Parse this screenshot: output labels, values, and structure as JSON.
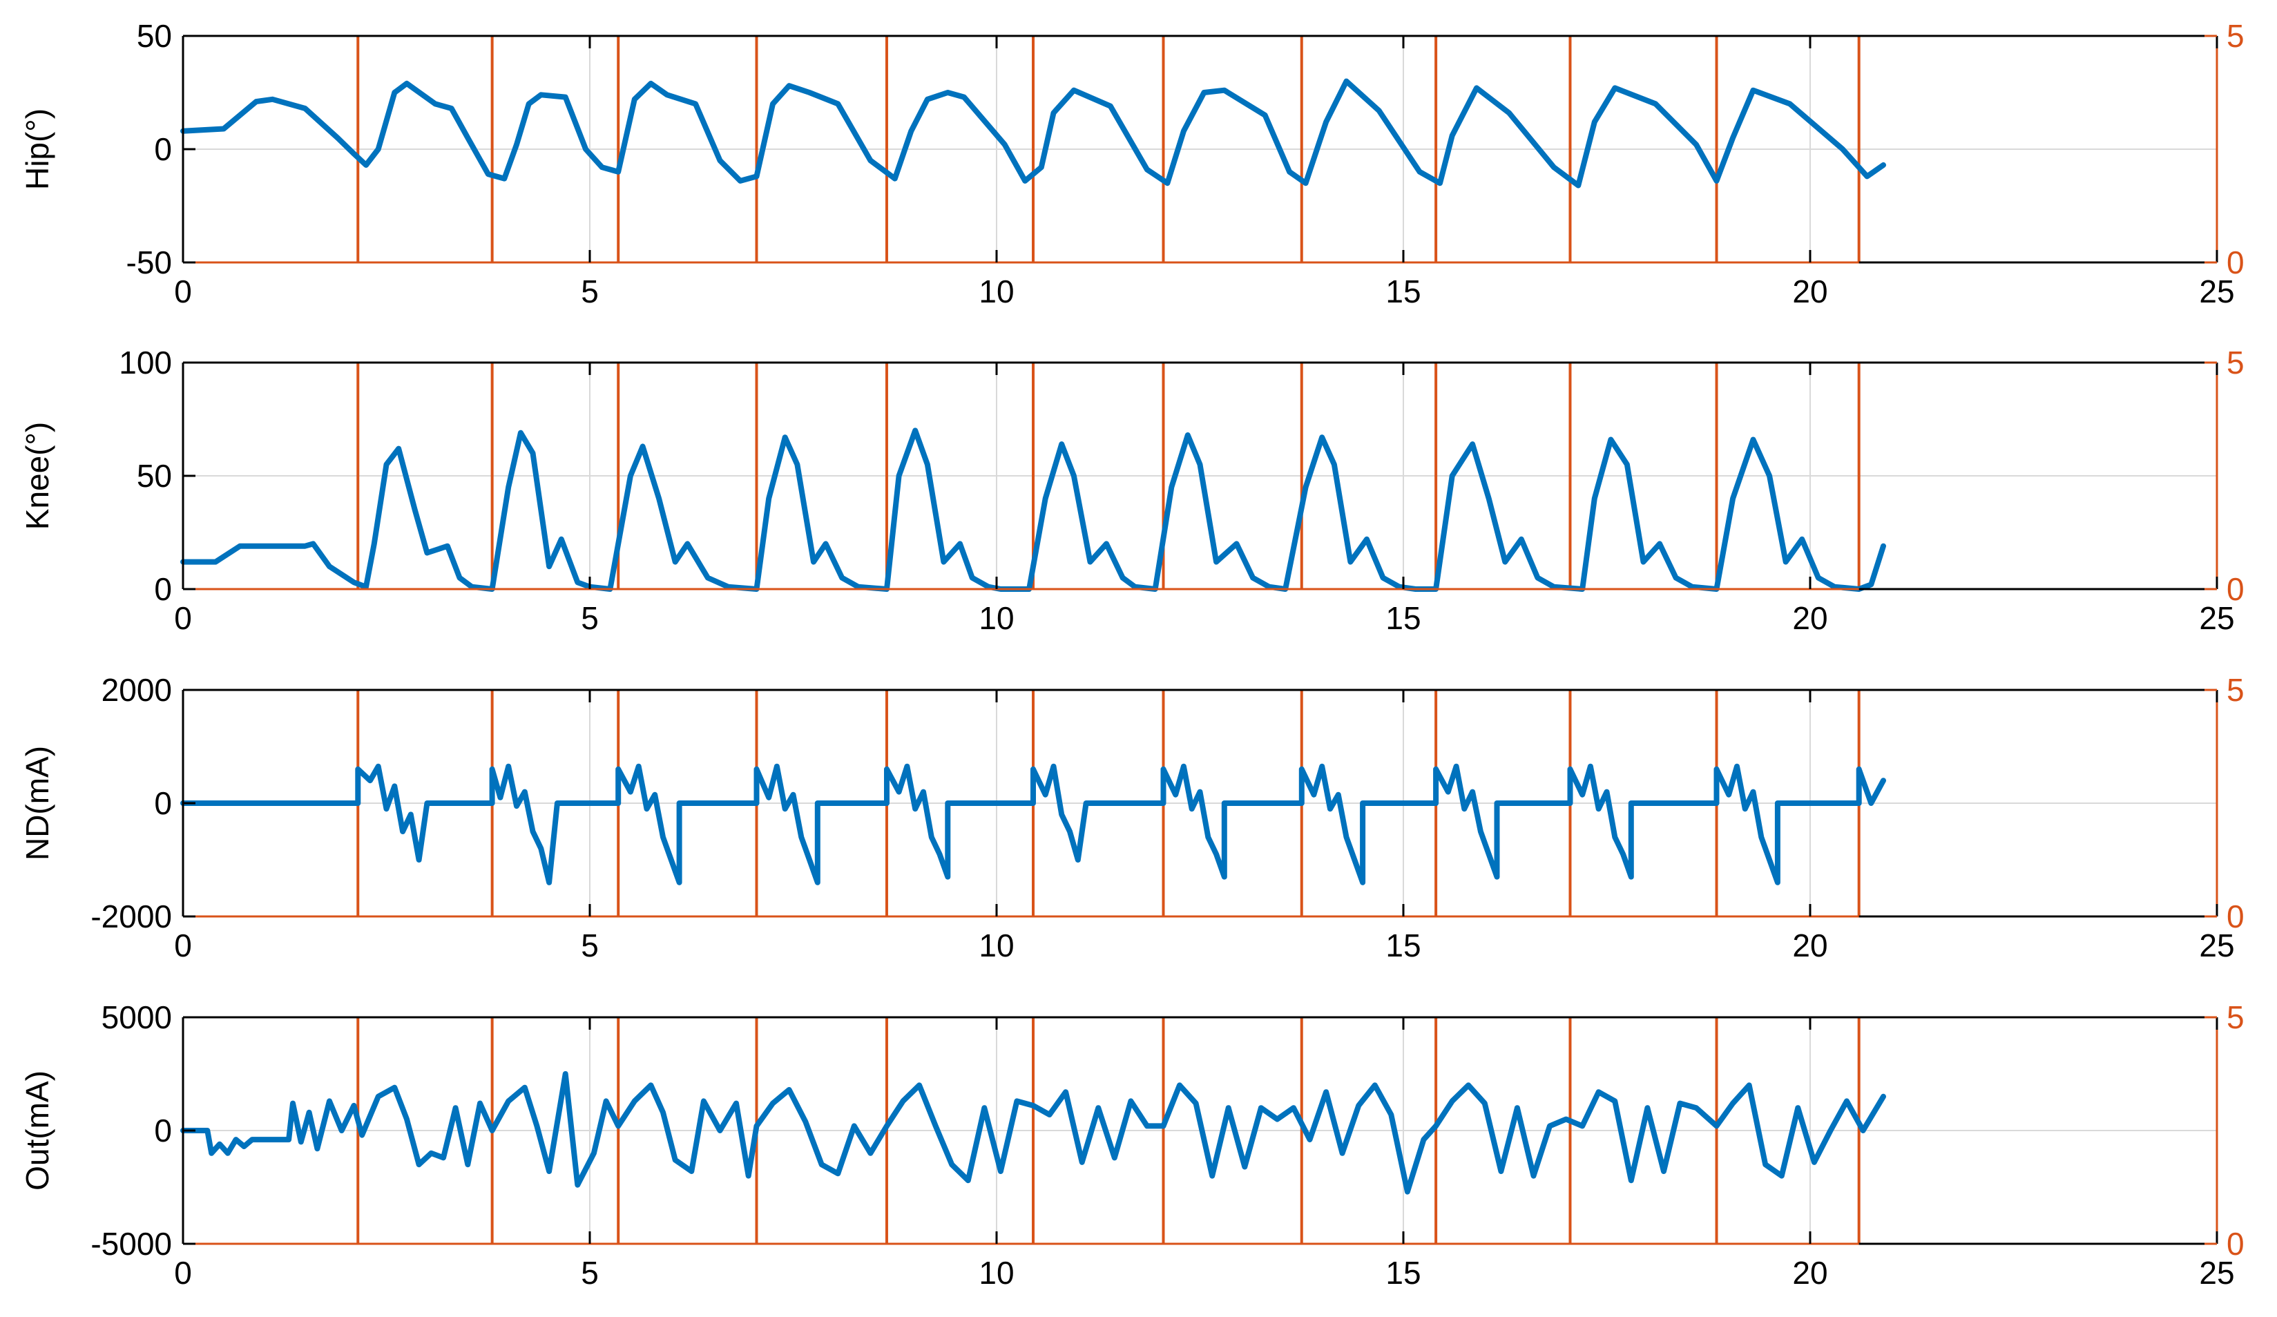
{
  "figure": {
    "background": "#ffffff"
  },
  "colors": {
    "signal": "#0072BD",
    "event": "#D95319",
    "grid": "#d9d9d9",
    "axis": "#000000"
  },
  "chart_data": [
    {
      "type": "line",
      "ylabel": "Hip(°)",
      "xlim": [
        0,
        25
      ],
      "ylim": [
        -50,
        50
      ],
      "y2lim": [
        0,
        5
      ],
      "xticks": [
        "0",
        "5",
        "10",
        "15",
        "20",
        "25"
      ],
      "yticks": [
        "-50",
        "0",
        "50"
      ],
      "y2ticks": [
        "0",
        "5"
      ],
      "grid": true,
      "events_x": [
        2.15,
        3.8,
        5.35,
        7.05,
        8.65,
        10.45,
        12.05,
        13.75,
        15.4,
        17.05,
        18.85,
        20.6
      ],
      "signal": {
        "x": [
          0,
          0.5,
          0.9,
          1.1,
          1.5,
          1.9,
          2.1,
          2.25,
          2.4,
          2.6,
          2.75,
          3.1,
          3.3,
          3.5,
          3.75,
          3.95,
          4.1,
          4.25,
          4.4,
          4.7,
          4.95,
          5.15,
          5.35,
          5.55,
          5.75,
          5.95,
          6.3,
          6.6,
          6.85,
          7.05,
          7.25,
          7.45,
          7.7,
          8.05,
          8.45,
          8.75,
          8.95,
          9.15,
          9.4,
          9.6,
          10.1,
          10.35,
          10.55,
          10.7,
          10.95,
          11.4,
          11.85,
          12.1,
          12.3,
          12.55,
          12.8,
          13.3,
          13.6,
          13.8,
          14.05,
          14.3,
          14.7,
          15.2,
          15.45,
          15.6,
          15.9,
          16.3,
          16.85,
          17.15,
          17.35,
          17.6,
          18.1,
          18.6,
          18.85,
          19.05,
          19.3,
          19.75,
          20.4,
          20.7,
          20.9
        ],
        "y": [
          8,
          9,
          21,
          22,
          18,
          5,
          -2,
          -7,
          0,
          25,
          29,
          20,
          18,
          5,
          -11,
          -13,
          2,
          20,
          24,
          23,
          0,
          -8,
          -10,
          22,
          29,
          24,
          20,
          -5,
          -14,
          -12,
          20,
          28,
          25,
          20,
          -5,
          -13,
          8,
          22,
          25,
          23,
          2,
          -14,
          -8,
          16,
          26,
          19,
          -9,
          -15,
          8,
          25,
          26,
          15,
          -10,
          -15,
          12,
          30,
          17,
          -10,
          -15,
          6,
          27,
          16,
          -8,
          -16,
          12,
          27,
          20,
          2,
          -14,
          5,
          26,
          20,
          0,
          -12,
          -7
        ]
      }
    },
    {
      "type": "line",
      "ylabel": "Knee(°)",
      "xlim": [
        0,
        25
      ],
      "ylim": [
        0,
        100
      ],
      "y2lim": [
        0,
        5
      ],
      "xticks": [
        "0",
        "5",
        "10",
        "15",
        "20",
        "25"
      ],
      "yticks": [
        "0",
        "50",
        "100"
      ],
      "y2ticks": [
        "0",
        "5"
      ],
      "grid": true,
      "events_x": [
        2.15,
        3.8,
        5.35,
        7.05,
        8.65,
        10.45,
        12.05,
        13.75,
        15.4,
        17.05,
        18.85,
        20.6
      ],
      "signal": {
        "x": [
          0,
          0.4,
          0.7,
          1.5,
          1.6,
          1.8,
          2.1,
          2.25,
          2.35,
          2.5,
          2.65,
          2.85,
          3.0,
          3.25,
          3.4,
          3.55,
          3.8,
          4.0,
          4.15,
          4.3,
          4.5,
          4.65,
          4.85,
          5.0,
          5.25,
          5.5,
          5.65,
          5.85,
          6.05,
          6.2,
          6.45,
          6.7,
          7.05,
          7.2,
          7.4,
          7.55,
          7.75,
          7.9,
          8.1,
          8.3,
          8.65,
          8.8,
          9.0,
          9.15,
          9.35,
          9.55,
          9.7,
          9.9,
          10.05,
          10.4,
          10.6,
          10.8,
          10.95,
          11.15,
          11.35,
          11.55,
          11.7,
          11.95,
          12.15,
          12.35,
          12.5,
          12.7,
          12.95,
          13.15,
          13.35,
          13.55,
          13.8,
          14.0,
          14.15,
          14.35,
          14.55,
          14.75,
          14.95,
          15.15,
          15.4,
          15.6,
          15.85,
          16.05,
          16.25,
          16.45,
          16.65,
          16.85,
          17.2,
          17.35,
          17.55,
          17.75,
          17.95,
          18.15,
          18.35,
          18.55,
          18.85,
          19.05,
          19.3,
          19.5,
          19.7,
          19.9,
          20.1,
          20.3,
          20.6,
          20.75,
          20.9
        ],
        "y": [
          12,
          12,
          19,
          19,
          20,
          10,
          3,
          1,
          20,
          55,
          62,
          35,
          16,
          19,
          5,
          1,
          0,
          45,
          69,
          60,
          10,
          22,
          3,
          1,
          0,
          50,
          63,
          40,
          12,
          20,
          5,
          1,
          0,
          40,
          67,
          55,
          12,
          20,
          5,
          1,
          0,
          50,
          70,
          55,
          12,
          20,
          5,
          1,
          0,
          0,
          40,
          64,
          50,
          12,
          20,
          5,
          1,
          0,
          45,
          68,
          55,
          12,
          20,
          5,
          1,
          0,
          45,
          67,
          55,
          12,
          22,
          5,
          1,
          0,
          0,
          50,
          64,
          40,
          12,
          22,
          5,
          1,
          0,
          40,
          66,
          55,
          12,
          20,
          5,
          1,
          0,
          40,
          66,
          50,
          12,
          22,
          5,
          1,
          0,
          2,
          19
        ]
      }
    },
    {
      "type": "line",
      "ylabel": "ND(mA)",
      "xlim": [
        0,
        25
      ],
      "ylim": [
        -2000,
        2000
      ],
      "y2lim": [
        0,
        5
      ],
      "xticks": [
        "0",
        "5",
        "10",
        "15",
        "20",
        "25"
      ],
      "yticks": [
        "-2000",
        "0",
        "2000"
      ],
      "y2ticks": [
        "0",
        "5"
      ],
      "grid": true,
      "events_x": [
        2.15,
        3.8,
        5.35,
        7.05,
        8.65,
        10.45,
        12.05,
        13.75,
        15.4,
        17.05,
        18.85,
        20.6
      ],
      "signal": {
        "x": [
          0,
          2.15,
          2.15,
          2.3,
          2.4,
          2.5,
          2.6,
          2.7,
          2.8,
          2.9,
          3.0,
          3.0,
          3.8,
          3.8,
          3.9,
          4.0,
          4.1,
          4.2,
          4.3,
          4.4,
          4.5,
          4.6,
          4.6,
          5.35,
          5.35,
          5.5,
          5.6,
          5.7,
          5.8,
          5.9,
          6.0,
          6.1,
          6.1,
          7.05,
          7.05,
          7.2,
          7.3,
          7.4,
          7.5,
          7.6,
          7.7,
          7.8,
          7.8,
          8.65,
          8.65,
          8.8,
          8.9,
          9.0,
          9.1,
          9.2,
          9.3,
          9.4,
          9.4,
          10.45,
          10.45,
          10.6,
          10.7,
          10.8,
          10.9,
          11.0,
          11.1,
          11.1,
          12.05,
          12.05,
          12.2,
          12.3,
          12.4,
          12.5,
          12.6,
          12.7,
          12.8,
          12.8,
          13.75,
          13.75,
          13.9,
          14.0,
          14.1,
          14.2,
          14.3,
          14.4,
          14.5,
          14.5,
          15.4,
          15.4,
          15.55,
          15.65,
          15.75,
          15.85,
          15.95,
          16.05,
          16.15,
          16.15,
          17.05,
          17.05,
          17.2,
          17.3,
          17.4,
          17.5,
          17.6,
          17.7,
          17.8,
          17.8,
          18.85,
          18.85,
          19.0,
          19.1,
          19.2,
          19.3,
          19.4,
          19.5,
          19.6,
          19.6,
          20.6,
          20.6,
          20.75,
          20.9
        ],
        "y": [
          0,
          0,
          600,
          400,
          650,
          -100,
          300,
          -500,
          -200,
          -1000,
          0,
          0,
          0,
          600,
          100,
          650,
          -50,
          200,
          -500,
          -800,
          -1400,
          0,
          0,
          0,
          600,
          200,
          650,
          -100,
          150,
          -600,
          -1000,
          -1400,
          0,
          0,
          600,
          100,
          650,
          -100,
          150,
          -600,
          -1000,
          -1400,
          0,
          0,
          600,
          200,
          650,
          -100,
          200,
          -600,
          -900,
          -1300,
          0,
          0,
          600,
          150,
          650,
          -200,
          -500,
          -1000,
          0,
          0,
          0,
          600,
          150,
          650,
          -100,
          200,
          -600,
          -900,
          -1300,
          0,
          0,
          600,
          150,
          650,
          -100,
          150,
          -600,
          -1000,
          -1400,
          0,
          0,
          600,
          200,
          650,
          -100,
          200,
          -500,
          -900,
          -1300,
          0,
          0,
          600,
          150,
          650,
          -100,
          200,
          -600,
          -900,
          -1300,
          0,
          0,
          600,
          150,
          650,
          -100,
          200,
          -600,
          -1000,
          -1400,
          0,
          0,
          600,
          0,
          400
        ]
      }
    },
    {
      "type": "line",
      "ylabel": "Out(mA)",
      "xlim": [
        0,
        25
      ],
      "ylim": [
        -5000,
        5000
      ],
      "y2lim": [
        0,
        5
      ],
      "xticks": [
        "0",
        "5",
        "10",
        "15",
        "20",
        "25"
      ],
      "yticks": [
        "-5000",
        "0",
        "5000"
      ],
      "y2ticks": [
        "0",
        "5"
      ],
      "grid": true,
      "events_x": [
        2.15,
        3.8,
        5.35,
        7.05,
        8.65,
        10.45,
        12.05,
        13.75,
        15.4,
        17.05,
        18.85,
        20.6
      ],
      "signal": {
        "x": [
          0,
          0.3,
          0.35,
          0.45,
          0.55,
          0.65,
          0.75,
          0.85,
          0.95,
          1.3,
          1.35,
          1.45,
          1.55,
          1.65,
          1.8,
          1.95,
          2.1,
          2.2,
          2.4,
          2.6,
          2.75,
          2.9,
          3.05,
          3.2,
          3.35,
          3.5,
          3.65,
          3.8,
          4.0,
          4.2,
          4.35,
          4.5,
          4.7,
          4.85,
          5.05,
          5.2,
          5.35,
          5.55,
          5.75,
          5.9,
          6.05,
          6.25,
          6.4,
          6.6,
          6.8,
          6.95,
          7.05,
          7.25,
          7.45,
          7.65,
          7.85,
          8.05,
          8.25,
          8.45,
          8.65,
          8.85,
          9.05,
          9.25,
          9.45,
          9.65,
          9.85,
          10.05,
          10.25,
          10.45,
          10.65,
          10.85,
          11.05,
          11.25,
          11.45,
          11.65,
          11.85,
          12.05,
          12.25,
          12.45,
          12.65,
          12.85,
          13.05,
          13.25,
          13.45,
          13.65,
          13.85,
          14.05,
          14.25,
          14.45,
          14.65,
          14.85,
          15.05,
          15.25,
          15.4,
          15.6,
          15.8,
          16.0,
          16.2,
          16.4,
          16.6,
          16.8,
          17.0,
          17.2,
          17.4,
          17.6,
          17.8,
          18.0,
          18.2,
          18.4,
          18.6,
          18.85,
          19.05,
          19.25,
          19.45,
          19.65,
          19.85,
          20.05,
          20.25,
          20.45,
          20.65,
          20.9
        ],
        "y": [
          0,
          0,
          -1000,
          -600,
          -1000,
          -400,
          -700,
          -400,
          -400,
          -400,
          1200,
          -500,
          800,
          -800,
          1300,
          0,
          1100,
          -200,
          1500,
          1900,
          500,
          -1500,
          -1000,
          -1200,
          1000,
          -1500,
          1200,
          0,
          1300,
          1900,
          200,
          -1800,
          2500,
          -2400,
          -1000,
          1300,
          200,
          1300,
          2000,
          800,
          -1300,
          -1800,
          1300,
          0,
          1200,
          -2000,
          200,
          1200,
          1800,
          400,
          -1500,
          -1900,
          200,
          -1000,
          200,
          1300,
          2000,
          200,
          -1500,
          -2200,
          1000,
          -1800,
          1300,
          1100,
          700,
          1700,
          -1400,
          1000,
          -1200,
          1300,
          200,
          200,
          2000,
          1200,
          -2000,
          1000,
          -1600,
          1000,
          500,
          1000,
          -400,
          1700,
          -1000,
          1100,
          2000,
          700,
          -2700,
          -400,
          200,
          1300,
          2000,
          1200,
          -1800,
          1000,
          -2000,
          200,
          500,
          200,
          1700,
          1300,
          -2200,
          1000,
          -1800,
          1200,
          1000,
          200,
          1200,
          2000,
          -1500,
          -2000,
          1000,
          -1400,
          0,
          1300,
          0,
          1500
        ]
      }
    }
  ]
}
